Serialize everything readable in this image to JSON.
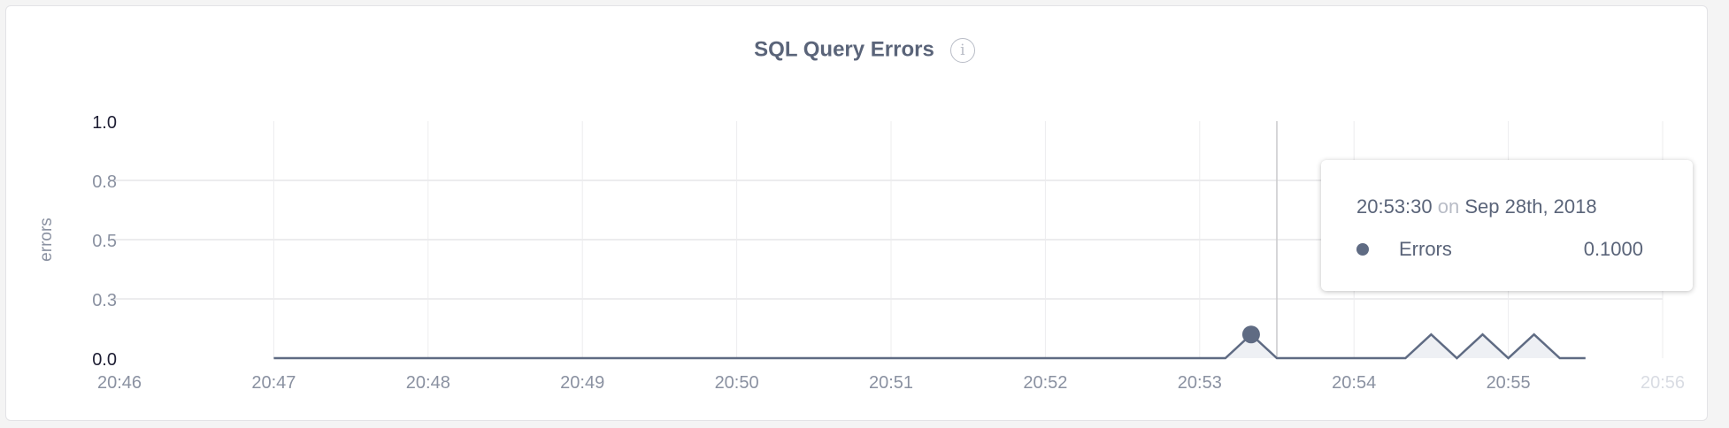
{
  "chart_data": {
    "type": "area",
    "title": "SQL Query Errors",
    "title_icon": "info-icon",
    "xlabel": "",
    "ylabel": "errors",
    "ylim": [
      0,
      1
    ],
    "xlim": [
      "20:46",
      "20:56"
    ],
    "yticks": [
      0,
      0.25,
      0.5,
      0.75,
      1.0
    ],
    "ytick_labels": [
      "0.0",
      "0.3",
      "0.5",
      "0.8",
      "1.0"
    ],
    "xtick_labels": [
      "20:46",
      "20:47",
      "20:48",
      "20:49",
      "20:50",
      "20:51",
      "20:52",
      "20:53",
      "20:54",
      "20:55",
      "20:56"
    ],
    "grid": true,
    "series": [
      {
        "name": "Errors",
        "color": "#5f6b83",
        "x": [
          "20:47:00",
          "20:53:10",
          "20:53:20",
          "20:53:30",
          "20:54:20",
          "20:54:30",
          "20:54:40",
          "20:54:50",
          "20:55:00",
          "20:55:10",
          "20:55:20",
          "20:55:30"
        ],
        "y": [
          0,
          0,
          0.1,
          0,
          0,
          0.1,
          0,
          0.1,
          0,
          0.1,
          0,
          0
        ]
      }
    ],
    "hover": {
      "x": "20:53:30",
      "marker_at": "20:53:20"
    }
  },
  "tooltip": {
    "time": "20:53:30",
    "on": "on",
    "date": "Sep 28th, 2018",
    "series_label": "Errors",
    "value": "0.1000"
  }
}
